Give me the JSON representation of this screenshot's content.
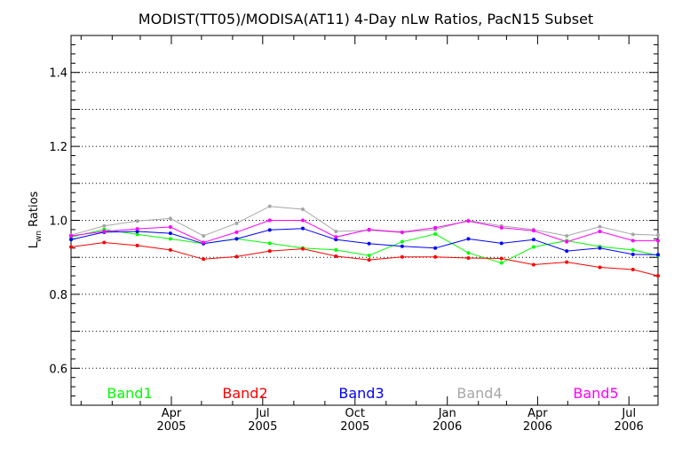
{
  "chart_data": {
    "type": "line",
    "title": "MODIST(TT05)/MODISA(AT11) 4-Day nLw Ratios, PacN15 Subset",
    "ylabel": "Lwn Ratios",
    "ylabel_main": "L",
    "ylabel_sub": "wn",
    "ylabel_rest": " Ratios",
    "ylim": [
      0.5,
      1.5
    ],
    "xlim": [
      "2004-12-22",
      "2006-07-30"
    ],
    "yticks": [
      {
        "value": 0.6,
        "label": "0.6"
      },
      {
        "value": 0.8,
        "label": "0.8"
      },
      {
        "value": 1.0,
        "label": "1.0"
      },
      {
        "value": 1.2,
        "label": "1.2"
      },
      {
        "value": 1.4,
        "label": "1.4"
      }
    ],
    "ygrid": [
      0.6,
      0.7,
      0.8,
      0.9,
      1.0,
      1.1,
      1.2,
      1.3,
      1.4
    ],
    "grid": "horizontal-dotted",
    "xticks": [
      {
        "date": "2005-04-01",
        "month": "Apr",
        "year": "2005"
      },
      {
        "date": "2005-07-01",
        "month": "Jul",
        "year": "2005"
      },
      {
        "date": "2005-10-01",
        "month": "Oct",
        "year": "2005"
      },
      {
        "date": "2006-01-01",
        "month": "Jan",
        "year": "2006"
      },
      {
        "date": "2006-04-01",
        "month": "Apr",
        "year": "2006"
      },
      {
        "date": "2006-07-01",
        "month": "Jul",
        "year": "2006"
      }
    ],
    "minor_xticks": [
      "2005-01-01",
      "2005-02-01",
      "2005-03-01",
      "2005-05-01",
      "2005-06-01",
      "2005-08-01",
      "2005-09-01",
      "2005-11-01",
      "2005-12-01",
      "2006-02-01",
      "2006-03-01",
      "2006-05-01",
      "2006-06-01"
    ],
    "x": [
      "2004-12-22",
      "2005-01-24",
      "2005-02-26",
      "2005-03-31",
      "2005-05-03",
      "2005-06-05",
      "2005-07-08",
      "2005-08-10",
      "2005-09-12",
      "2005-10-15",
      "2005-11-17",
      "2005-12-20",
      "2006-01-22",
      "2006-02-24",
      "2006-03-28",
      "2006-04-30",
      "2006-06-02",
      "2006-07-05",
      "2006-07-30"
    ],
    "series": [
      {
        "name": "Band1",
        "color": "#00ff00",
        "values": [
          0.955,
          0.975,
          0.962,
          0.95,
          0.937,
          0.95,
          0.938,
          0.925,
          0.92,
          0.905,
          0.942,
          0.963,
          0.912,
          0.885,
          0.928,
          0.945,
          0.929,
          0.92,
          0.905
        ]
      },
      {
        "name": "Band2",
        "color": "#ff0000",
        "values": [
          0.928,
          0.94,
          0.932,
          0.92,
          0.895,
          0.902,
          0.917,
          0.923,
          0.903,
          0.893,
          0.901,
          0.901,
          0.898,
          0.897,
          0.88,
          0.887,
          0.873,
          0.867,
          0.85
        ]
      },
      {
        "name": "Band3",
        "color": "#0000ff",
        "values": [
          0.948,
          0.968,
          0.97,
          0.965,
          0.937,
          0.95,
          0.974,
          0.978,
          0.948,
          0.937,
          0.93,
          0.925,
          0.95,
          0.938,
          0.948,
          0.917,
          0.925,
          0.908,
          0.907
        ]
      },
      {
        "name": "Band4",
        "color": "#a6a6a6",
        "values": [
          0.96,
          0.985,
          0.998,
          1.005,
          0.958,
          0.992,
          1.038,
          1.03,
          0.97,
          0.973,
          0.967,
          0.975,
          1.0,
          0.985,
          0.975,
          0.958,
          0.983,
          0.962,
          0.96
        ]
      },
      {
        "name": "Band5",
        "color": "#ff00ff",
        "values": [
          0.958,
          0.97,
          0.977,
          0.982,
          0.94,
          0.968,
          1.0,
          1.0,
          0.955,
          0.975,
          0.968,
          0.98,
          0.998,
          0.98,
          0.972,
          0.942,
          0.97,
          0.945,
          0.945
        ]
      }
    ],
    "legend_position": "bottom"
  }
}
